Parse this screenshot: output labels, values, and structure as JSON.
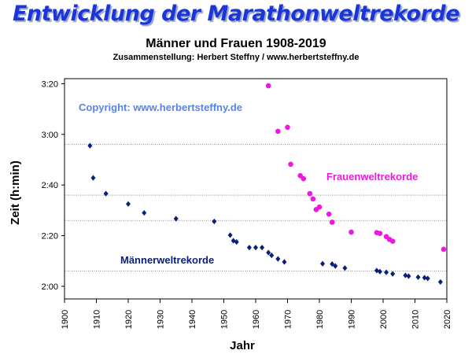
{
  "header": {
    "title": "Entwicklung der Marathonweltrekorde",
    "subtitle": "Männer und Frauen 1908-2019",
    "credit": "Zusammenstellung: Herbert Steffny / www.herbertsteffny.de"
  },
  "chart_data": {
    "type": "scatter",
    "xlabel": "Jahr",
    "ylabel": "Zeit (h:min)",
    "xlim": [
      1900,
      2020
    ],
    "ylim": [
      115,
      202
    ],
    "x_ticks": [
      "1900",
      "1910",
      "1920",
      "1930",
      "1940",
      "1950",
      "1960",
      "1970",
      "1980",
      "1990",
      "2000",
      "2010",
      "2020"
    ],
    "y_tick_labels": [
      {
        "value": 120,
        "label": "2:00"
      },
      {
        "value": 140,
        "label": "2:20"
      },
      {
        "value": 160,
        "label": "2:40"
      },
      {
        "value": 180,
        "label": "3:00"
      },
      {
        "value": 200,
        "label": "3:20"
      }
    ],
    "gridlines_y": [
      126,
      146,
      156,
      176
    ],
    "annotations": {
      "copyright": "Copyright: www.herbertsteffny.de",
      "women_label": "Frauenweltrekorde",
      "men_label": "Männerweltrekorde"
    },
    "series": [
      {
        "name": "Männerweltrekorde",
        "color": "#0a1f7a",
        "marker": "diamond",
        "points": [
          [
            1908,
            175.5
          ],
          [
            1909,
            162.8
          ],
          [
            1913,
            156.6
          ],
          [
            1920,
            152.5
          ],
          [
            1925,
            149.0
          ],
          [
            1935,
            146.7
          ],
          [
            1947,
            145.6
          ],
          [
            1952,
            140.2
          ],
          [
            1953,
            138.0
          ],
          [
            1954,
            137.5
          ],
          [
            1958,
            135.3
          ],
          [
            1960,
            135.3
          ],
          [
            1962,
            135.3
          ],
          [
            1964,
            133.3
          ],
          [
            1965,
            132.2
          ],
          [
            1967,
            130.8
          ],
          [
            1969,
            129.6
          ],
          [
            1981,
            128.9
          ],
          [
            1984,
            128.8
          ],
          [
            1985,
            128.0
          ],
          [
            1988,
            127.2
          ],
          [
            1998,
            126.2
          ],
          [
            1999,
            125.8
          ],
          [
            2001,
            125.5
          ],
          [
            2003,
            124.9
          ],
          [
            2007,
            124.3
          ],
          [
            2008,
            124.0
          ],
          [
            2011,
            123.6
          ],
          [
            2013,
            123.4
          ],
          [
            2014,
            123.1
          ],
          [
            2018,
            121.7
          ]
        ]
      },
      {
        "name": "Frauenweltrekorde",
        "color": "#ee18e0",
        "marker": "circle",
        "points": [
          [
            1964,
            199.2
          ],
          [
            1967,
            181.2
          ],
          [
            1970,
            182.8
          ],
          [
            1971,
            168.2
          ],
          [
            1974,
            163.7
          ],
          [
            1975,
            162.5
          ],
          [
            1977,
            156.6
          ],
          [
            1978,
            154.5
          ],
          [
            1979,
            150.3
          ],
          [
            1980,
            151.3
          ],
          [
            1983,
            148.5
          ],
          [
            1984,
            145.3
          ],
          [
            1990,
            141.4
          ],
          [
            1998,
            141.2
          ],
          [
            1999,
            140.9
          ],
          [
            2001,
            139.6
          ],
          [
            2002,
            138.5
          ],
          [
            2003,
            137.8
          ],
          [
            2019,
            134.6
          ]
        ]
      }
    ]
  }
}
